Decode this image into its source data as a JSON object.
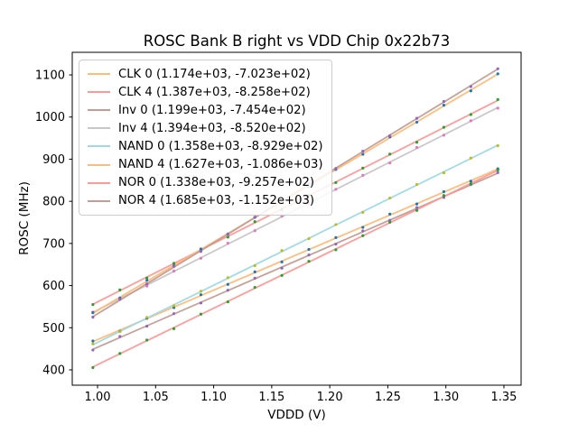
{
  "figure": {
    "title": "ROSC Bank B right vs VDD Chip 0x22b73"
  },
  "chart_data": {
    "type": "line",
    "title": "ROSC Bank B right vs VDD Chip 0x22b73",
    "xlabel": "VDDD (V)",
    "ylabel": "ROSC (MHz)",
    "grid": false,
    "legend_position": "upper left",
    "xlim": [
      0.9782,
      1.3648
    ],
    "ylim": [
      363.6,
      1153.6
    ],
    "x_ticks": {
      "values": [
        1.0,
        1.05,
        1.1,
        1.15,
        1.2,
        1.25,
        1.3,
        1.35
      ],
      "labels": [
        "1.00",
        "1.05",
        "1.10",
        "1.15",
        "1.20",
        "1.25",
        "1.30",
        "1.35"
      ]
    },
    "y_ticks": {
      "values": [
        400,
        500,
        600,
        700,
        800,
        900,
        1000,
        1100
      ],
      "labels": [
        "400",
        "500",
        "600",
        "700",
        "800",
        "900",
        "1000",
        "1100"
      ]
    },
    "x_points": [
      0.996,
      1.01925,
      1.0425,
      1.06575,
      1.089,
      1.11225,
      1.1355,
      1.15875,
      1.182,
      1.20525,
      1.2285,
      1.25175,
      1.275,
      1.29825,
      1.3215,
      1.34475
    ],
    "scatter_jitter": [
      1.5,
      -2.5,
      0.8,
      -1.2,
      2.2,
      -0.6,
      1.8,
      -2.0,
      0.5,
      1.2,
      -1.8,
      2.5,
      -0.9,
      1.0,
      -1.5,
      0.7
    ],
    "series": [
      {
        "name": "CLK 0",
        "label": "CLK 0 (1.174e+03, -7.023e+02)",
        "slope": 1174,
        "intercept": -702.3,
        "line_color": "#ffbb78",
        "marker_color": "#1f77b4"
      },
      {
        "name": "CLK 4",
        "label": "CLK 4 (1.387e+03, -8.258e+02)",
        "slope": 1387,
        "intercept": -825.8,
        "line_color": "#ff9896",
        "marker_color": "#2ca02c"
      },
      {
        "name": "Inv 0",
        "label": "Inv 0 (1.199e+03, -7.454e+02)",
        "slope": 1199,
        "intercept": -745.4,
        "line_color": "#c49c94",
        "marker_color": "#9467bd"
      },
      {
        "name": "Inv 4",
        "label": "Inv 4 (1.394e+03, -8.520e+02)",
        "slope": 1394,
        "intercept": -852.0,
        "line_color": "#c7c7c7",
        "marker_color": "#e377c2"
      },
      {
        "name": "NAND 0",
        "label": "NAND 0 (1.358e+03, -8.929e+02)",
        "slope": 1358,
        "intercept": -892.9,
        "line_color": "#9edae5",
        "marker_color": "#bcbd22"
      },
      {
        "name": "NAND 4",
        "label": "NAND 4 (1.627e+03, -1.086e+03)",
        "slope": 1627,
        "intercept": -1086.0,
        "line_color": "#ffbb78",
        "marker_color": "#1f77b4"
      },
      {
        "name": "NOR 0",
        "label": "NOR 0 (1.338e+03, -9.257e+02)",
        "slope": 1338,
        "intercept": -925.7,
        "line_color": "#ff9896",
        "marker_color": "#2ca02c"
      },
      {
        "name": "NOR 4",
        "label": "NOR 4 (1.685e+03, -1.152e+03)",
        "slope": 1685,
        "intercept": -1152.0,
        "line_color": "#c49c94",
        "marker_color": "#9467bd"
      }
    ],
    "axis_color": "#000000",
    "background_color": "#ffffff"
  }
}
